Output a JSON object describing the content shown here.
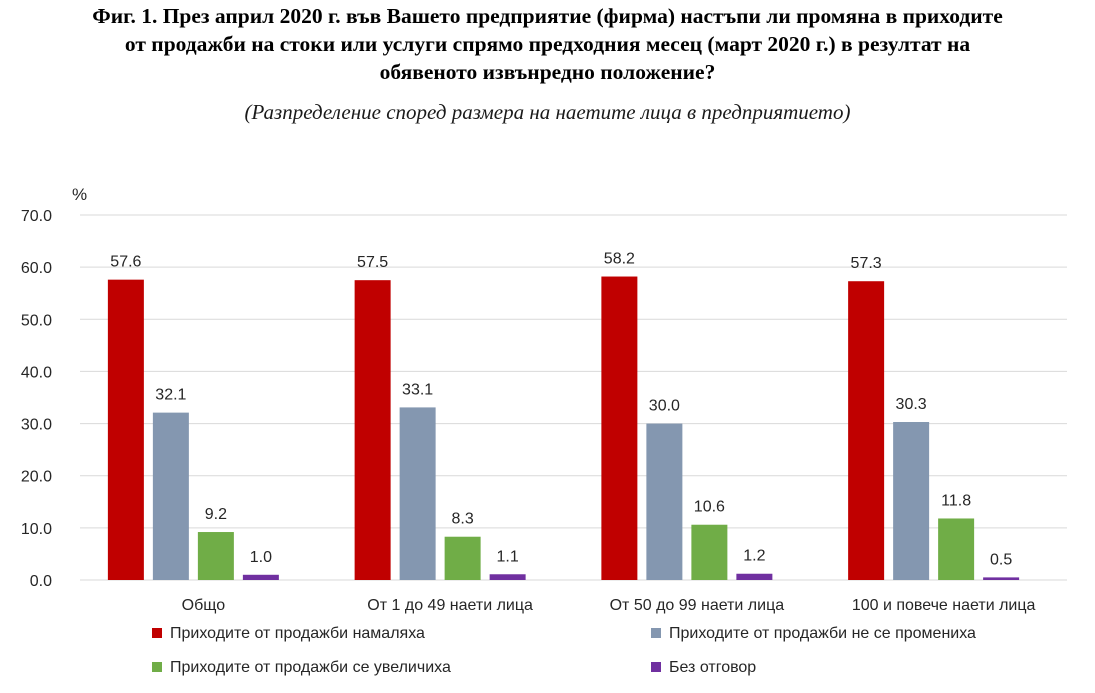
{
  "title_lines": [
    "Фиг. 1. През април 2020 г. във Вашето предприятие (фирма) настъпи ли промяна в приходите",
    "от продажби на стоки или услуги спрямо предходния месец (март 2020 г.) в резултат на",
    "обявеното извънредно положение?"
  ],
  "subtitle": "(Разпределение според размера на наетите лица в предприятието)",
  "colors": {
    "decreased": "#c00000",
    "unchanged": "#8497b0",
    "increased": "#70ad47",
    "no_answer": "#7030a0",
    "grid": "#d9d9d9",
    "axis_text": "#262626"
  },
  "chart_data": {
    "type": "bar",
    "title": "Фиг. 1. През април 2020 г. във Вашето предприятие (фирма) настъпи ли промяна в приходите от продажби на стоки или услуги спрямо предходния месец (март 2020 г.) в резултат на обявеното извънредно положение?",
    "subtitle": "(Разпределение според размера на наетите лица в предприятието)",
    "ylabel": "%",
    "ylim": [
      0,
      70
    ],
    "yticks": [
      "0.0",
      "10.0",
      "20.0",
      "30.0",
      "40.0",
      "50.0",
      "60.0",
      "70.0"
    ],
    "grid": true,
    "legend_position": "bottom",
    "categories": [
      "Общо",
      "От 1 до 49 наети лица",
      "От 50 до 99 наети лица",
      "100 и повече наети лица"
    ],
    "series": [
      {
        "name": "Приходите от продажби намаляха",
        "values": [
          57.6,
          57.5,
          58.2,
          57.3
        ],
        "labels": [
          "57.6",
          "57.5",
          "58.2",
          "57.3"
        ],
        "color": "#c00000"
      },
      {
        "name": "Приходите от продажби не се промениха",
        "values": [
          32.1,
          33.1,
          30.0,
          30.3
        ],
        "labels": [
          "32.1",
          "33.1",
          "30.0",
          "30.3"
        ],
        "color": "#8497b0"
      },
      {
        "name": "Приходите от продажби се увеличиха",
        "values": [
          9.2,
          8.3,
          10.6,
          11.8
        ],
        "labels": [
          "9.2",
          "8.3",
          "10.6",
          "11.8"
        ],
        "color": "#70ad47"
      },
      {
        "name": "Без отговор",
        "values": [
          1.0,
          1.1,
          1.2,
          0.5
        ],
        "labels": [
          "1.0",
          "1.1",
          "1.2",
          "0.5"
        ],
        "color": "#7030a0"
      }
    ]
  }
}
